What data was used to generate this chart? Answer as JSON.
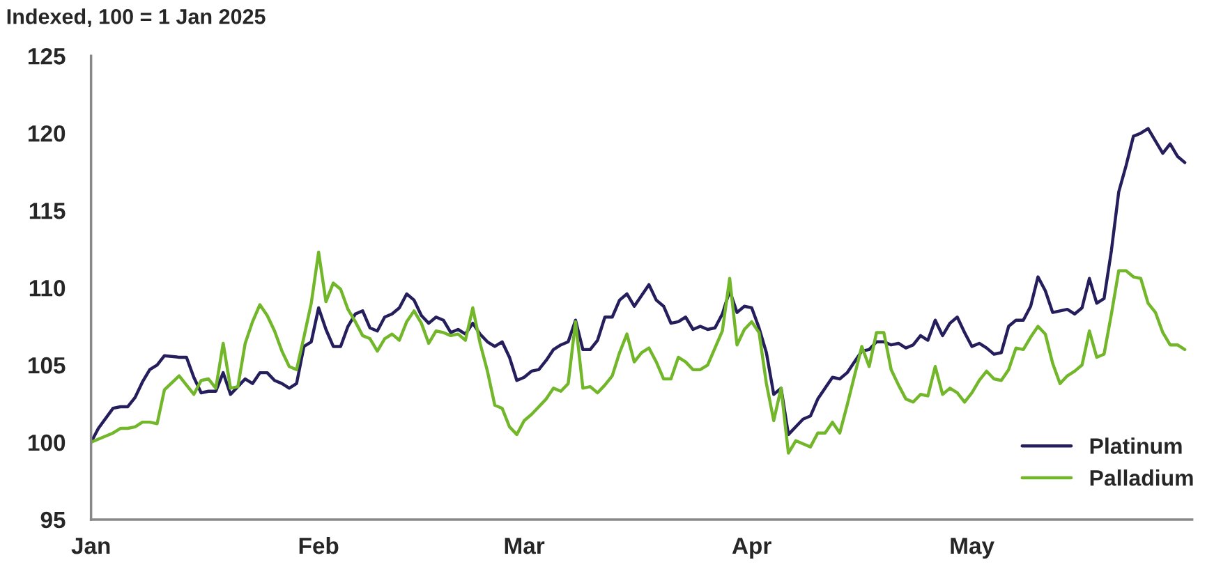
{
  "chart_data": {
    "type": "line",
    "ylabel": "Indexed, 100 = 1 Jan 2025",
    "x": [
      "2025-01-01",
      "2025-01-02",
      "2025-01-04",
      "2025-01-05",
      "2025-01-06",
      "2025-01-07",
      "2025-01-08",
      "2025-01-09",
      "2025-01-10",
      "2025-01-11",
      "2025-01-13",
      "2025-01-14",
      "2025-01-15",
      "2025-01-16",
      "2025-01-17",
      "2025-01-18",
      "2025-01-19",
      "2025-01-20",
      "2025-01-21",
      "2025-01-22",
      "2025-01-23",
      "2025-01-24",
      "2025-01-25",
      "2025-01-26",
      "2025-01-27",
      "2025-01-28",
      "2025-01-29",
      "2025-01-30",
      "2025-01-31",
      "2025-02-01",
      "2025-02-02",
      "2025-02-03",
      "2025-02-04",
      "2025-02-05",
      "2025-02-06",
      "2025-02-07",
      "2025-02-08",
      "2025-02-09",
      "2025-02-10",
      "2025-02-11",
      "2025-02-12",
      "2025-02-13",
      "2025-02-14",
      "2025-02-15",
      "2025-02-16",
      "2025-02-17",
      "2025-02-18",
      "2025-02-19",
      "2025-02-20",
      "2025-02-21",
      "2025-02-22",
      "2025-02-23",
      "2025-02-24",
      "2025-02-25",
      "2025-02-26",
      "2025-02-27",
      "2025-02-28",
      "2025-03-01",
      "2025-03-02",
      "2025-03-03",
      "2025-03-04",
      "2025-03-05",
      "2025-03-06",
      "2025-03-07",
      "2025-03-08",
      "2025-03-09",
      "2025-03-10",
      "2025-03-11",
      "2025-03-12",
      "2025-03-13",
      "2025-03-14",
      "2025-03-15",
      "2025-03-16",
      "2025-03-17",
      "2025-03-18",
      "2025-03-19",
      "2025-03-20",
      "2025-03-21",
      "2025-03-22",
      "2025-03-23",
      "2025-03-24",
      "2025-03-25",
      "2025-03-26",
      "2025-03-27",
      "2025-03-28",
      "2025-03-29",
      "2025-03-30",
      "2025-03-31",
      "2025-04-01",
      "2025-04-02",
      "2025-04-03",
      "2025-04-04",
      "2025-04-05",
      "2025-04-06",
      "2025-04-07",
      "2025-04-08",
      "2025-04-09",
      "2025-04-10",
      "2025-04-11",
      "2025-04-12",
      "2025-04-13",
      "2025-04-14",
      "2025-04-15",
      "2025-04-16",
      "2025-04-17",
      "2025-04-18",
      "2025-04-19",
      "2025-04-20",
      "2025-04-21",
      "2025-04-22",
      "2025-04-23",
      "2025-04-24",
      "2025-04-25",
      "2025-04-26",
      "2025-04-27",
      "2025-04-28",
      "2025-04-29",
      "2025-04-30",
      "2025-05-01",
      "2025-05-02",
      "2025-05-03",
      "2025-05-04",
      "2025-05-05",
      "2025-05-06",
      "2025-05-07",
      "2025-05-08",
      "2025-05-09",
      "2025-05-10",
      "2025-05-11",
      "2025-05-12",
      "2025-05-13",
      "2025-05-14",
      "2025-05-15",
      "2025-05-16",
      "2025-05-17",
      "2025-05-18",
      "2025-05-19",
      "2025-05-20",
      "2025-05-21",
      "2025-05-22",
      "2025-05-23",
      "2025-05-24",
      "2025-05-25",
      "2025-05-26",
      "2025-05-27",
      "2025-05-28",
      "2025-05-29",
      "2025-05-30"
    ],
    "series": [
      {
        "name": "Platinum",
        "color": "#241f5c",
        "values": [
          100.0,
          100.9,
          102.2,
          102.3,
          102.3,
          102.9,
          103.9,
          104.7,
          105.0,
          105.6,
          105.5,
          105.5,
          104.2,
          103.2,
          103.3,
          103.3,
          104.5,
          103.1,
          103.6,
          104.1,
          103.8,
          104.5,
          104.5,
          104.0,
          103.8,
          103.5,
          103.8,
          106.2,
          106.5,
          108.7,
          107.3,
          106.2,
          106.2,
          107.5,
          108.3,
          108.5,
          107.4,
          107.2,
          108.1,
          108.3,
          108.7,
          109.6,
          109.2,
          108.2,
          107.7,
          108.1,
          107.9,
          107.1,
          107.3,
          107.0,
          107.7,
          107.0,
          106.5,
          106.2,
          106.5,
          105.5,
          104.0,
          104.2,
          104.6,
          104.7,
          105.3,
          106.0,
          106.3,
          106.5,
          107.9,
          106.0,
          106.0,
          106.6,
          108.1,
          108.1,
          109.2,
          109.6,
          108.8,
          109.5,
          110.2,
          109.2,
          108.8,
          107.7,
          107.8,
          108.1,
          107.3,
          107.5,
          107.3,
          107.4,
          108.3,
          109.8,
          108.4,
          108.8,
          108.7,
          107.4,
          105.8,
          103.1,
          103.5,
          100.5,
          101.0,
          101.5,
          101.7,
          102.8,
          103.5,
          104.2,
          104.1,
          104.5,
          105.2,
          105.9,
          106.0,
          106.5,
          106.5,
          106.3,
          106.4,
          106.1,
          106.3,
          106.9,
          106.6,
          107.9,
          106.9,
          107.7,
          108.1,
          107.1,
          106.2,
          106.4,
          106.1,
          105.7,
          105.8,
          107.5,
          107.9,
          107.9,
          108.8,
          110.7,
          109.8,
          108.4,
          108.5,
          108.6,
          108.3,
          108.7,
          110.6,
          109.0,
          109.3,
          112.4,
          116.2,
          117.9,
          119.8,
          120.0,
          120.3,
          119.5,
          118.7,
          119.3,
          118.5,
          118.1
        ]
      },
      {
        "name": "Palladium",
        "color": "#72b62a",
        "values": [
          100.0,
          100.2,
          100.6,
          100.9,
          100.9,
          101.0,
          101.3,
          101.3,
          101.2,
          103.4,
          104.3,
          103.7,
          103.1,
          104.0,
          104.1,
          103.5,
          106.4,
          103.5,
          103.6,
          106.4,
          107.8,
          108.9,
          108.2,
          107.2,
          105.9,
          104.9,
          104.7,
          106.8,
          109.0,
          112.3,
          109.1,
          110.3,
          109.9,
          108.6,
          107.8,
          106.9,
          106.7,
          105.9,
          106.7,
          107.0,
          106.6,
          107.8,
          108.5,
          107.7,
          106.4,
          107.2,
          107.1,
          106.9,
          107.0,
          106.6,
          108.7,
          106.4,
          104.6,
          102.4,
          102.2,
          101.0,
          100.5,
          101.4,
          101.8,
          102.3,
          102.8,
          103.5,
          103.3,
          103.8,
          107.8,
          103.5,
          103.6,
          103.2,
          103.7,
          104.3,
          105.8,
          107.0,
          105.2,
          105.8,
          106.1,
          105.2,
          104.1,
          104.1,
          105.5,
          105.2,
          104.7,
          104.7,
          105.0,
          106.1,
          107.2,
          110.6,
          106.3,
          107.3,
          107.8,
          107.1,
          103.8,
          101.4,
          103.5,
          99.3,
          100.1,
          99.9,
          99.7,
          100.6,
          100.6,
          101.3,
          100.6,
          102.4,
          104.3,
          106.2,
          104.9,
          107.1,
          107.1,
          104.7,
          103.7,
          102.8,
          102.6,
          103.1,
          103.0,
          104.9,
          103.1,
          103.5,
          103.2,
          102.6,
          103.2,
          104.0,
          104.6,
          104.1,
          104.0,
          104.7,
          106.1,
          106.0,
          106.8,
          107.5,
          107.0,
          105.1,
          103.8,
          104.3,
          104.6,
          105.0,
          107.2,
          105.5,
          105.7,
          108.3,
          111.1,
          111.1,
          110.7,
          110.6,
          109.0,
          108.4,
          107.1,
          106.3,
          106.3,
          106.0
        ]
      }
    ],
    "xlim": [
      "2025-01-01",
      "2025-05-31"
    ],
    "xticks": [
      {
        "value": "2025-01-01",
        "label": "Jan"
      },
      {
        "value": "2025-02-01",
        "label": "Feb"
      },
      {
        "value": "2025-03-01",
        "label": "Mar"
      },
      {
        "value": "2025-04-01",
        "label": "Apr"
      },
      {
        "value": "2025-05-01",
        "label": "May"
      }
    ],
    "ylim": [
      95,
      125
    ],
    "yticks": [
      95,
      100,
      105,
      110,
      115,
      120,
      125
    ],
    "grid": false,
    "legend": "bottom right"
  }
}
